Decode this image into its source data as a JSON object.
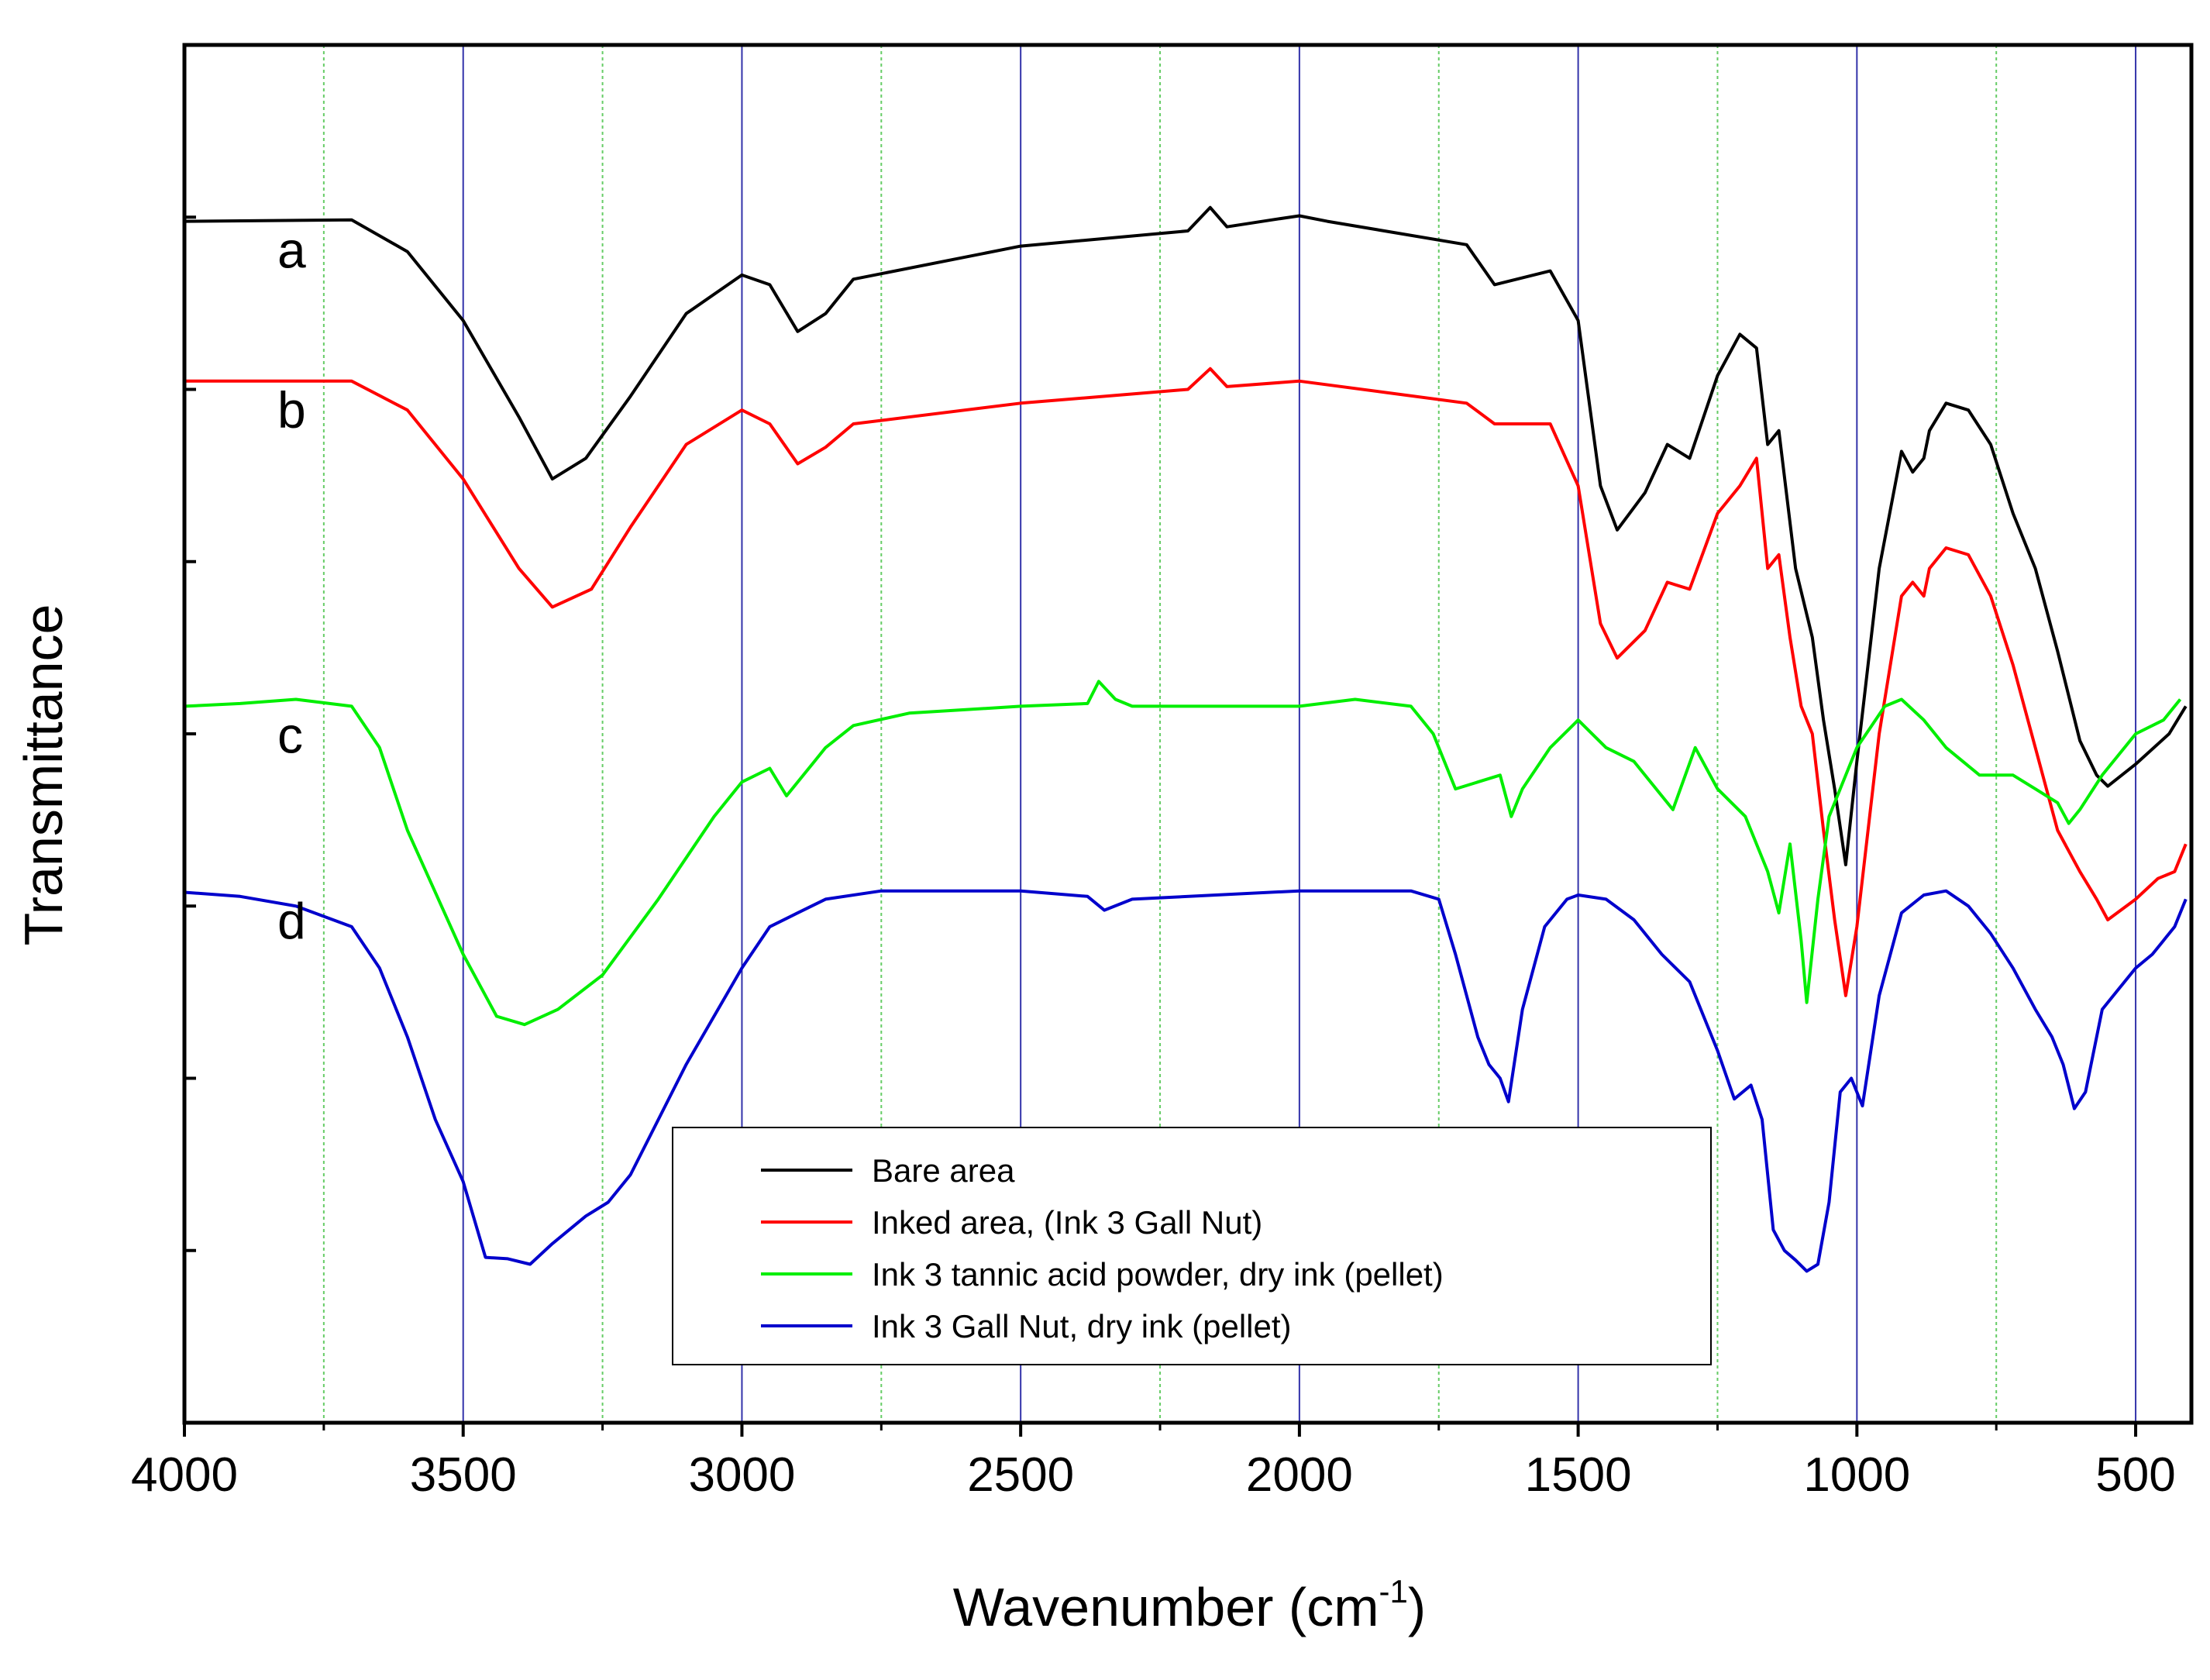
{
  "chart_data": {
    "type": "line",
    "title": "",
    "xlabel": "Wavenumber (cm",
    "xlabel_sup": "-1",
    "xlabel_close": ")",
    "ylabel": "Transmittance",
    "xlim": [
      4000,
      400
    ],
    "x_reversed": true,
    "ylim": [
      0,
      100
    ],
    "y_tick_labels_shown": false,
    "x_ticks": [
      4000,
      3500,
      3000,
      2500,
      2000,
      1500,
      1000,
      500
    ],
    "x_tick_labels": [
      "4000",
      "3500",
      "3000",
      "2500",
      "2000",
      "1500",
      "1000",
      "500"
    ],
    "grid_major": [
      3500,
      3000,
      2500,
      2000,
      1500,
      1000,
      500
    ],
    "grid_minor": [
      3750,
      3250,
      2750,
      2250,
      1750,
      1250,
      750
    ],
    "legend_position": "bottom-center",
    "curve_labels": [
      {
        "text": "a",
        "series": "Bare area"
      },
      {
        "text": "b",
        "series": "Inked area, (Ink 3 Gall Nut)"
      },
      {
        "text": "c",
        "series": "Ink 3 tannic acid powder, dry ink (pellet)"
      },
      {
        "text": "d",
        "series": "Ink 3 Gall Nut, dry ink (pellet)"
      }
    ],
    "series": [
      {
        "name": "Bare area",
        "label": "a",
        "color": "#000000",
        "points": [
          [
            4000,
            87.2
          ],
          [
            3700,
            87.3
          ],
          [
            3600,
            85
          ],
          [
            3500,
            80
          ],
          [
            3400,
            73
          ],
          [
            3340,
            68.5
          ],
          [
            3280,
            70
          ],
          [
            3200,
            74.5
          ],
          [
            3100,
            80.5
          ],
          [
            3000,
            83.3
          ],
          [
            2950,
            82.6
          ],
          [
            2900,
            79.2
          ],
          [
            2850,
            80.5
          ],
          [
            2800,
            83
          ],
          [
            2500,
            85.4
          ],
          [
            2200,
            86.5
          ],
          [
            2160,
            88.2
          ],
          [
            2130,
            86.8
          ],
          [
            2050,
            87.3
          ],
          [
            2000,
            87.6
          ],
          [
            1950,
            87.2
          ],
          [
            1700,
            85.5
          ],
          [
            1650,
            82.6
          ],
          [
            1550,
            83.6
          ],
          [
            1500,
            80
          ],
          [
            1460,
            68
          ],
          [
            1430,
            64.8
          ],
          [
            1380,
            67.5
          ],
          [
            1340,
            71
          ],
          [
            1300,
            70
          ],
          [
            1250,
            76
          ],
          [
            1210,
            79
          ],
          [
            1180,
            78
          ],
          [
            1160,
            71
          ],
          [
            1140,
            72
          ],
          [
            1110,
            62
          ],
          [
            1080,
            57
          ],
          [
            1060,
            51
          ],
          [
            1040,
            46
          ],
          [
            1020,
            40.5
          ],
          [
            1000,
            48
          ],
          [
            960,
            62
          ],
          [
            920,
            70.5
          ],
          [
            900,
            69
          ],
          [
            880,
            70
          ],
          [
            870,
            72
          ],
          [
            840,
            74
          ],
          [
            800,
            73.5
          ],
          [
            760,
            71
          ],
          [
            720,
            66
          ],
          [
            680,
            62
          ],
          [
            640,
            56
          ],
          [
            600,
            49.5
          ],
          [
            570,
            47
          ],
          [
            550,
            46.2
          ],
          [
            500,
            47.8
          ],
          [
            440,
            50
          ],
          [
            410,
            52
          ]
        ]
      },
      {
        "name": "Inked area, (Ink 3 Gall Nut)",
        "label": "b",
        "color": "#ff0000",
        "points": [
          [
            4000,
            75.6
          ],
          [
            3700,
            75.6
          ],
          [
            3600,
            73.5
          ],
          [
            3500,
            68.5
          ],
          [
            3400,
            62
          ],
          [
            3340,
            59.2
          ],
          [
            3270,
            60.5
          ],
          [
            3200,
            65
          ],
          [
            3100,
            71
          ],
          [
            3000,
            73.5
          ],
          [
            2950,
            72.5
          ],
          [
            2900,
            69.6
          ],
          [
            2850,
            70.8
          ],
          [
            2800,
            72.5
          ],
          [
            2500,
            74
          ],
          [
            2200,
            75
          ],
          [
            2160,
            76.5
          ],
          [
            2130,
            75.2
          ],
          [
            2000,
            75.6
          ],
          [
            1700,
            74
          ],
          [
            1650,
            72.5
          ],
          [
            1550,
            72.5
          ],
          [
            1500,
            68
          ],
          [
            1460,
            58
          ],
          [
            1430,
            55.5
          ],
          [
            1380,
            57.5
          ],
          [
            1340,
            61
          ],
          [
            1300,
            60.5
          ],
          [
            1250,
            66
          ],
          [
            1210,
            68
          ],
          [
            1180,
            70
          ],
          [
            1160,
            62
          ],
          [
            1140,
            63
          ],
          [
            1120,
            57
          ],
          [
            1100,
            52
          ],
          [
            1080,
            50
          ],
          [
            1060,
            43
          ],
          [
            1040,
            36.5
          ],
          [
            1020,
            31
          ],
          [
            1000,
            36
          ],
          [
            960,
            50
          ],
          [
            920,
            60
          ],
          [
            900,
            61
          ],
          [
            880,
            60
          ],
          [
            870,
            62
          ],
          [
            840,
            63.5
          ],
          [
            800,
            63
          ],
          [
            760,
            60
          ],
          [
            720,
            55
          ],
          [
            680,
            49
          ],
          [
            640,
            43
          ],
          [
            600,
            40
          ],
          [
            570,
            38
          ],
          [
            550,
            36.5
          ],
          [
            500,
            38
          ],
          [
            460,
            39.5
          ],
          [
            430,
            40
          ],
          [
            410,
            42
          ]
        ]
      },
      {
        "name": "Ink 3 tannic acid powder, dry ink (pellet)",
        "label": "c",
        "color": "#00ee00",
        "points": [
          [
            4000,
            52
          ],
          [
            3900,
            52.2
          ],
          [
            3800,
            52.5
          ],
          [
            3700,
            52
          ],
          [
            3650,
            49
          ],
          [
            3600,
            43
          ],
          [
            3500,
            34
          ],
          [
            3440,
            29.5
          ],
          [
            3390,
            28.9
          ],
          [
            3330,
            30
          ],
          [
            3250,
            32.5
          ],
          [
            3150,
            38
          ],
          [
            3050,
            44
          ],
          [
            3000,
            46.5
          ],
          [
            2950,
            47.5
          ],
          [
            2920,
            45.5
          ],
          [
            2870,
            48
          ],
          [
            2850,
            49
          ],
          [
            2800,
            50.6
          ],
          [
            2700,
            51.5
          ],
          [
            2500,
            52
          ],
          [
            2380,
            52.2
          ],
          [
            2360,
            53.8
          ],
          [
            2330,
            52.5
          ],
          [
            2300,
            52
          ],
          [
            2000,
            52
          ],
          [
            1900,
            52.5
          ],
          [
            1800,
            52
          ],
          [
            1760,
            50
          ],
          [
            1720,
            46
          ],
          [
            1680,
            46.5
          ],
          [
            1640,
            47
          ],
          [
            1620,
            44
          ],
          [
            1600,
            46
          ],
          [
            1550,
            49
          ],
          [
            1500,
            51
          ],
          [
            1450,
            49
          ],
          [
            1400,
            48
          ],
          [
            1360,
            46
          ],
          [
            1330,
            44.5
          ],
          [
            1290,
            49
          ],
          [
            1250,
            46
          ],
          [
            1200,
            44
          ],
          [
            1160,
            40
          ],
          [
            1140,
            37
          ],
          [
            1120,
            42
          ],
          [
            1100,
            35
          ],
          [
            1090,
            30.5
          ],
          [
            1070,
            38
          ],
          [
            1050,
            44
          ],
          [
            1000,
            49
          ],
          [
            950,
            52
          ],
          [
            920,
            52.5
          ],
          [
            880,
            51
          ],
          [
            840,
            49
          ],
          [
            780,
            47
          ],
          [
            720,
            47
          ],
          [
            680,
            46
          ],
          [
            640,
            45
          ],
          [
            620,
            43.5
          ],
          [
            600,
            44.5
          ],
          [
            560,
            47
          ],
          [
            500,
            50
          ],
          [
            450,
            51
          ],
          [
            420,
            52.5
          ]
        ]
      },
      {
        "name": "Ink 3 Gall Nut, dry ink (pellet)",
        "label": "d",
        "color": "#0000cc",
        "points": [
          [
            4000,
            38.5
          ],
          [
            3900,
            38.2
          ],
          [
            3800,
            37.5
          ],
          [
            3700,
            36
          ],
          [
            3650,
            33
          ],
          [
            3600,
            28
          ],
          [
            3550,
            22
          ],
          [
            3500,
            17.5
          ],
          [
            3460,
            12
          ],
          [
            3420,
            11.9
          ],
          [
            3380,
            11.5
          ],
          [
            3340,
            13
          ],
          [
            3280,
            15
          ],
          [
            3240,
            16
          ],
          [
            3200,
            18
          ],
          [
            3100,
            26
          ],
          [
            3000,
            33
          ],
          [
            2950,
            36
          ],
          [
            2900,
            37
          ],
          [
            2850,
            38
          ],
          [
            2750,
            38.6
          ],
          [
            2500,
            38.6
          ],
          [
            2380,
            38.2
          ],
          [
            2350,
            37.2
          ],
          [
            2300,
            38
          ],
          [
            2000,
            38.6
          ],
          [
            1800,
            38.6
          ],
          [
            1750,
            38
          ],
          [
            1720,
            34
          ],
          [
            1680,
            28
          ],
          [
            1660,
            26
          ],
          [
            1640,
            25
          ],
          [
            1625,
            23.3
          ],
          [
            1600,
            30
          ],
          [
            1560,
            36
          ],
          [
            1520,
            38
          ],
          [
            1500,
            38.3
          ],
          [
            1450,
            38
          ],
          [
            1400,
            36.5
          ],
          [
            1350,
            34
          ],
          [
            1300,
            32
          ],
          [
            1250,
            27
          ],
          [
            1220,
            23.5
          ],
          [
            1190,
            24.5
          ],
          [
            1170,
            22
          ],
          [
            1150,
            14
          ],
          [
            1130,
            12.5
          ],
          [
            1110,
            11.8
          ],
          [
            1090,
            11
          ],
          [
            1070,
            11.5
          ],
          [
            1050,
            16
          ],
          [
            1030,
            24
          ],
          [
            1010,
            25
          ],
          [
            990,
            23
          ],
          [
            960,
            31
          ],
          [
            920,
            37
          ],
          [
            880,
            38.3
          ],
          [
            840,
            38.6
          ],
          [
            800,
            37.5
          ],
          [
            760,
            35.5
          ],
          [
            720,
            33
          ],
          [
            680,
            30
          ],
          [
            650,
            28
          ],
          [
            630,
            26
          ],
          [
            610,
            22.8
          ],
          [
            590,
            24
          ],
          [
            560,
            30
          ],
          [
            530,
            31.5
          ],
          [
            500,
            33
          ],
          [
            470,
            34
          ],
          [
            450,
            35
          ],
          [
            430,
            36
          ],
          [
            410,
            38
          ]
        ]
      }
    ]
  }
}
